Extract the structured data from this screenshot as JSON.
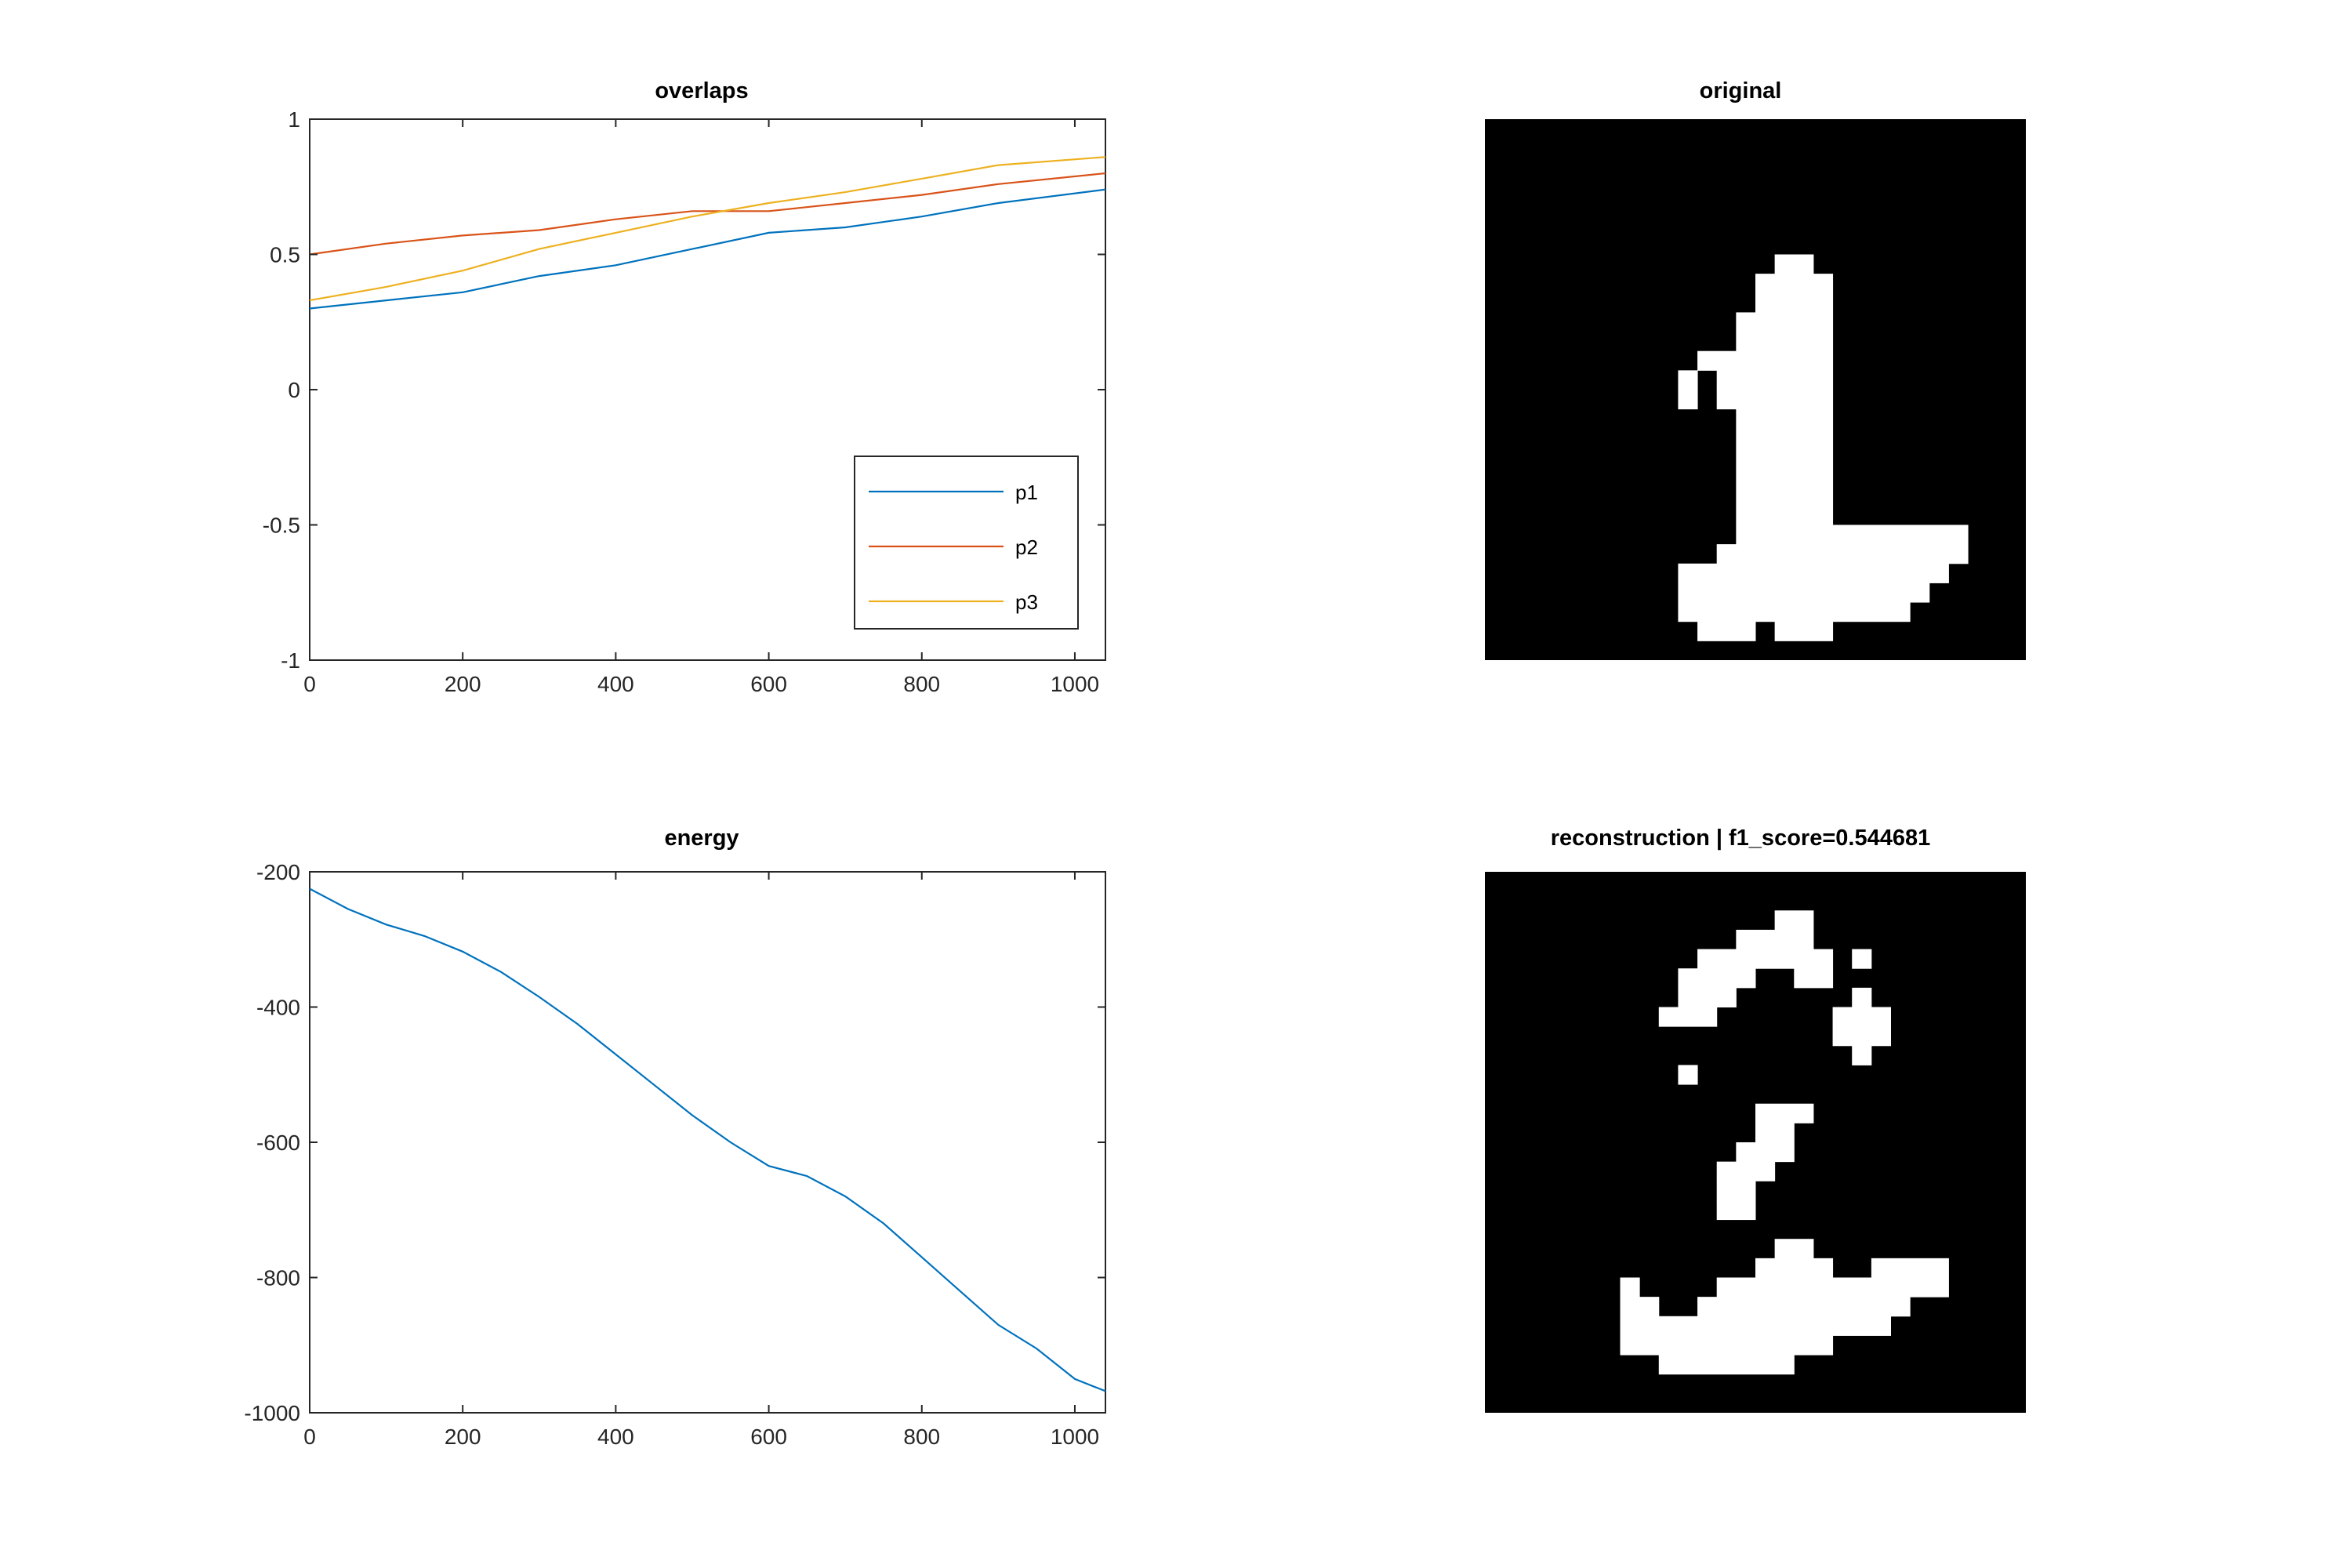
{
  "chart_data": [
    {
      "type": "line",
      "title": "overlaps",
      "xlabel": "",
      "ylabel": "",
      "xlim": [
        0,
        1040
      ],
      "ylim": [
        -1,
        1
      ],
      "xticks": [
        0,
        200,
        400,
        600,
        800,
        1000
      ],
      "xtick_labels": [
        "0",
        "200",
        "400",
        "600",
        "800",
        "1000"
      ],
      "yticks": [
        1,
        0.5,
        0,
        -0.5,
        -1
      ],
      "ytick_labels": [
        "1",
        "0.5",
        "0",
        "-0.5",
        "-1"
      ],
      "grid": false,
      "legend_position": "lower-right",
      "x": [
        0,
        100,
        200,
        300,
        400,
        500,
        600,
        700,
        800,
        900,
        1040
      ],
      "series": [
        {
          "name": "p1",
          "color": "#0072BD",
          "values": [
            0.3,
            0.33,
            0.36,
            0.42,
            0.46,
            0.52,
            0.58,
            0.6,
            0.64,
            0.69,
            0.74
          ]
        },
        {
          "name": "p2",
          "color": "#D95319",
          "values": [
            0.5,
            0.54,
            0.57,
            0.59,
            0.63,
            0.66,
            0.66,
            0.69,
            0.72,
            0.76,
            0.8
          ]
        },
        {
          "name": "p3",
          "color": "#EDB120",
          "values": [
            0.33,
            0.38,
            0.44,
            0.52,
            0.58,
            0.64,
            0.69,
            0.73,
            0.78,
            0.83,
            0.86
          ]
        }
      ]
    },
    {
      "type": "line",
      "title": "energy",
      "xlabel": "",
      "ylabel": "",
      "xlim": [
        0,
        1040
      ],
      "ylim": [
        -1000,
        -200
      ],
      "xticks": [
        0,
        200,
        400,
        600,
        800,
        1000
      ],
      "xtick_labels": [
        "0",
        "200",
        "400",
        "600",
        "800",
        "1000"
      ],
      "yticks": [
        -200,
        -400,
        -600,
        -800,
        -1000
      ],
      "ytick_labels": [
        "-200",
        "-400",
        -600,
        "-800",
        "-1000"
      ],
      "grid": false,
      "x": [
        0,
        50,
        100,
        150,
        200,
        250,
        300,
        350,
        400,
        450,
        500,
        550,
        600,
        650,
        700,
        750,
        800,
        850,
        900,
        950,
        1000,
        1040
      ],
      "series": [
        {
          "color": "#0072BD",
          "values": [
            -225,
            -255,
            -278,
            -295,
            -318,
            -348,
            -385,
            -425,
            -470,
            -515,
            -560,
            -600,
            -635,
            -650,
            -680,
            -720,
            -770,
            -820,
            -870,
            -905,
            -950,
            -968
          ]
        }
      ]
    },
    {
      "type": "heatmap",
      "title": "original",
      "colormap": [
        "#000000",
        "#ffffff"
      ],
      "grid_size": [
        28,
        28
      ],
      "rows": [
        "0000000000000000000000000000",
        "0000000000000000000000000000",
        "0000000000000000000000000000",
        "0000000000000000000000000000",
        "0000000000000000000000000000",
        "0000000000000000000000000000",
        "0000000000000000000000000000",
        "0000000000000001100000000000",
        "0000000000000011110000000000",
        "0000000000000011110000000000",
        "0000000000000111110000000000",
        "0000000000000111110000000000",
        "0000000000011111110000000000",
        "0000000000101111110000000000",
        "0000000000101111110000000000",
        "0000000000000111110000000000",
        "0000000000000111110000000000",
        "0000000000000111110000000000",
        "0000000000000111110000000000",
        "0000000000000111110000000000",
        "0000000000000111110000000000",
        "0000000000000111111111111000",
        "0000000000001111111111111000",
        "0000000000111111111111110000",
        "0000000000111111111111100000",
        "0000000000111111111111000000",
        "0000000000011101110000000000",
        "0000000000000000000000000000"
      ]
    },
    {
      "type": "heatmap",
      "title": "reconstruction | f1_score=0.544681",
      "colormap": [
        "#000000",
        "#ffffff"
      ],
      "grid_size": [
        28,
        28
      ],
      "rows": [
        "0000000000000000000000000000",
        "0000000000000000000000000000",
        "0000000000000001100000000000",
        "0000000000000111100000000000",
        "0000000000011111110100000000",
        "0000000000111100110000000000",
        "0000000000111000000100000000",
        "0000000001110000001110000000",
        "0000000000000000001110000000",
        "0000000000000000000100000000",
        "0000000000100000000000000000",
        "0000000000000000000000000000",
        "0000000000000011100000000000",
        "0000000000000011000000000000",
        "0000000000000111000000000000",
        "0000000000001110000000000000",
        "0000000000001100000000000000",
        "0000000000001100000000000000",
        "0000000000000000000000000000",
        "0000000000000001100000000000",
        "0000000000000011110011110000",
        "0000000100001111111111110000",
        "0000000110011111111111000000",
        "0000000111111111111110000000",
        "0000000111111111110000000000",
        "0000000001111111000000000000",
        "0000000000000000000000000000",
        "0000000000000000000000000000"
      ]
    }
  ]
}
